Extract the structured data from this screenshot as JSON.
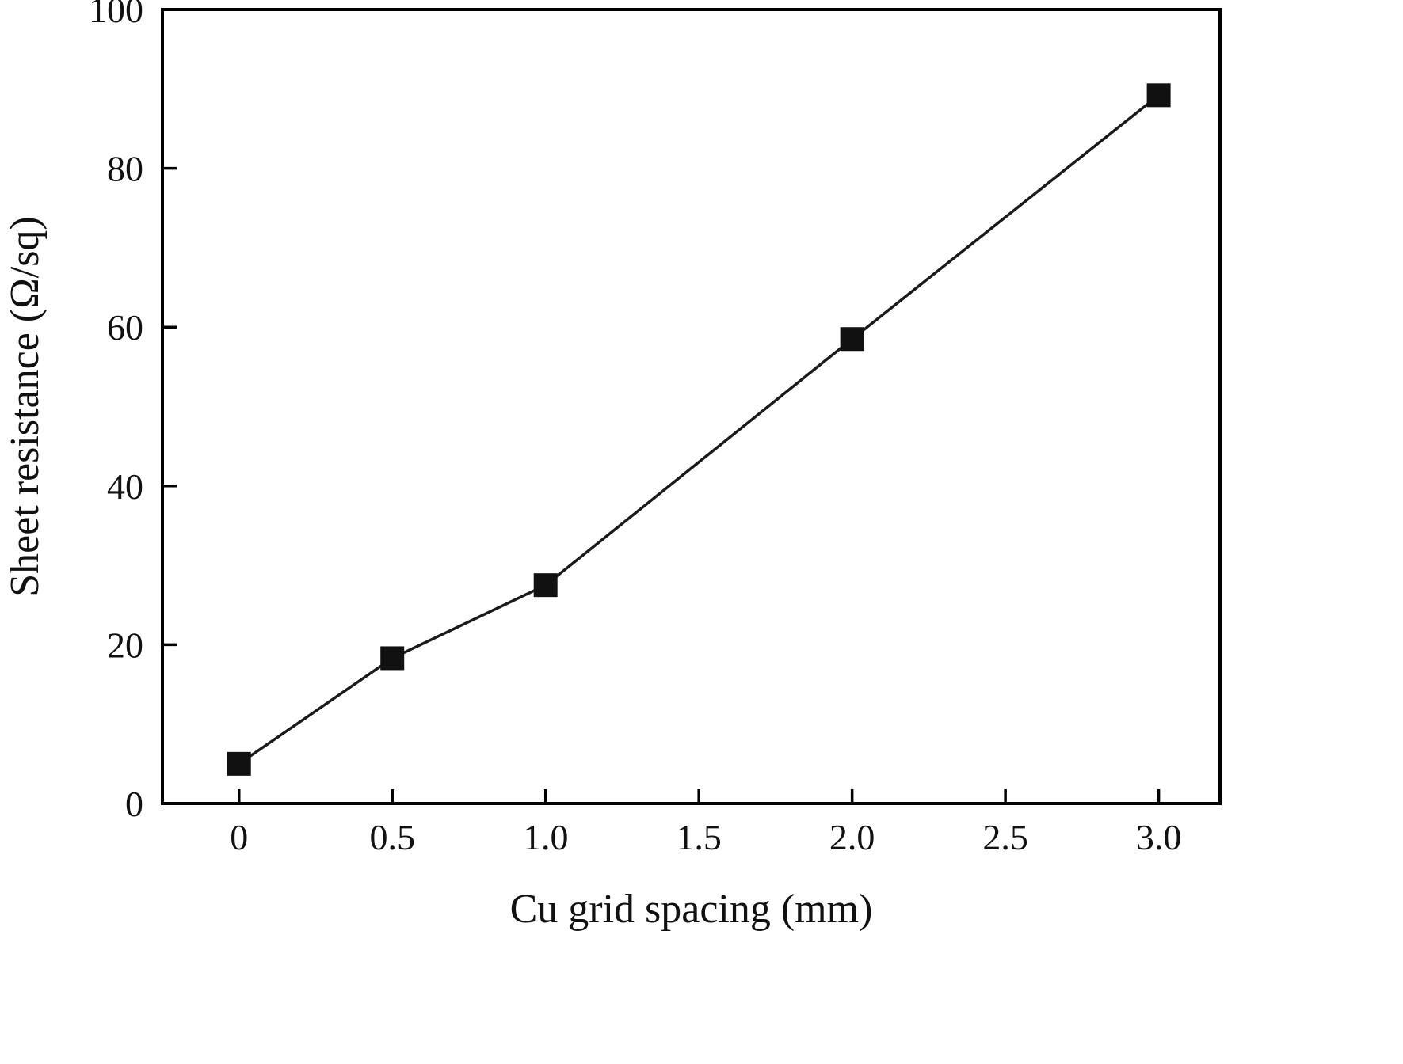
{
  "chart_data": {
    "type": "line",
    "xlabel": "Cu grid spacing (mm)",
    "ylabel": "Sheet resistance (Ω/sq)",
    "xlim": [
      -0.25,
      3.2
    ],
    "ylim": [
      0,
      100
    ],
    "xticks": {
      "values": [
        0,
        0.5,
        1.0,
        1.5,
        2.0,
        2.5,
        3.0
      ],
      "labels": [
        "0",
        "0.5",
        "1.0",
        "1.5",
        "2.0",
        "2.5",
        "3.0"
      ]
    },
    "yticks": {
      "values": [
        0,
        20,
        40,
        60,
        80,
        100
      ],
      "labels": [
        "0",
        "20",
        "40",
        "60",
        "80",
        "100"
      ]
    },
    "grid": false,
    "legend": null,
    "marker": "square",
    "colors": {
      "line": "#1a1a1a",
      "marker": "#111111",
      "frame": "#000000"
    },
    "series": [
      {
        "name": "sheet-resistance-vs-spacing",
        "x": [
          0,
          0.5,
          1.0,
          2.0,
          3.0
        ],
        "y": [
          5,
          18.3,
          27.5,
          58.5,
          89.2
        ]
      }
    ]
  }
}
